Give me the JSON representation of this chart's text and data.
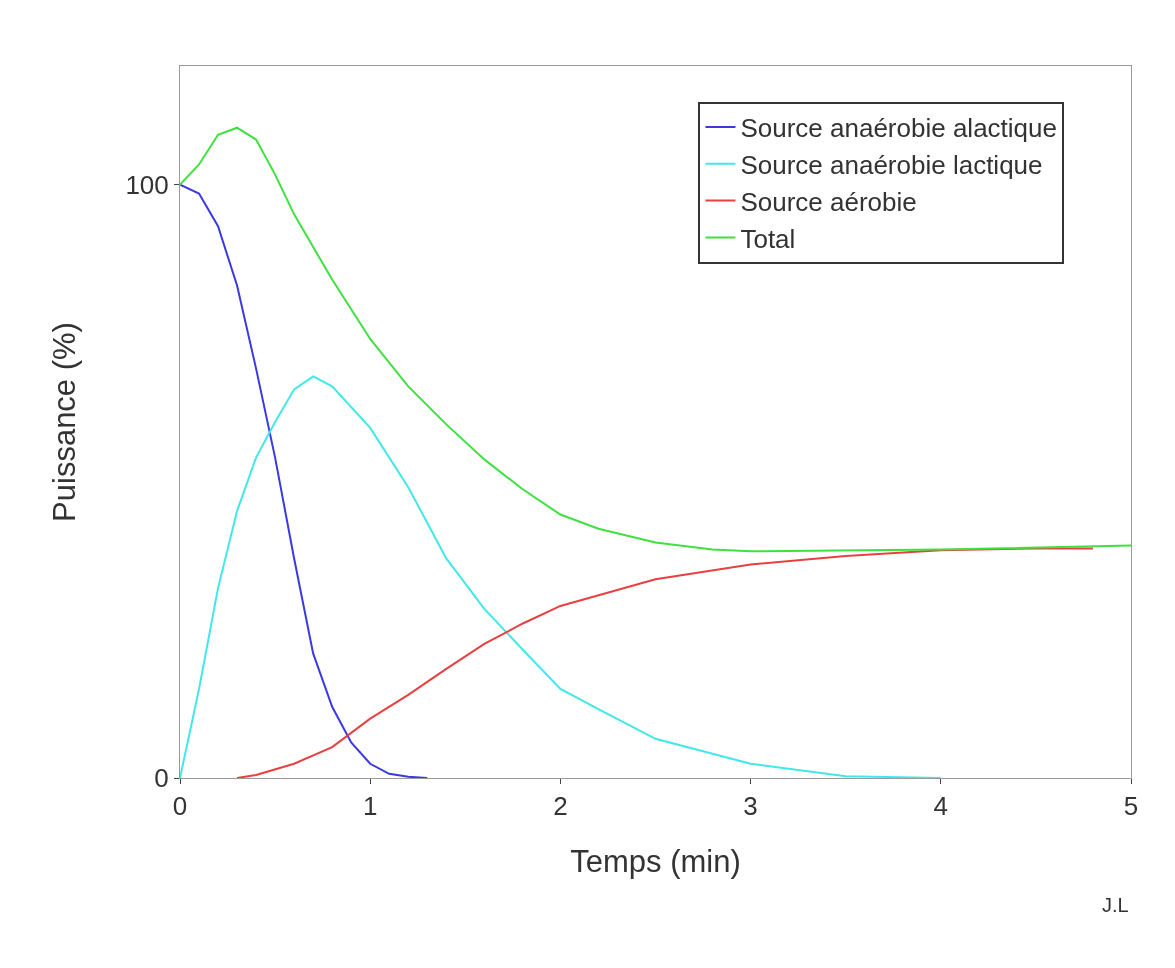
{
  "chart_data": {
    "type": "line",
    "xlabel": "Temps (min)",
    "ylabel": "Puissance (%)",
    "xlim": [
      0,
      5
    ],
    "xticks": [
      0,
      1,
      2,
      3,
      4,
      5
    ],
    "ylim": [
      0,
      120
    ],
    "yticks": [
      0,
      100
    ],
    "legend": "top right",
    "marker": "none",
    "line_style": "solid",
    "annotations": [
      "J.L"
    ],
    "series": [
      {
        "name": "Source anaérobie alactique",
        "color": "#3a3ae0",
        "x": [
          0,
          0.1,
          0.2,
          0.3,
          0.4,
          0.5,
          0.6,
          0.7,
          0.8,
          0.9,
          1.0,
          1.1,
          1.2,
          1.3
        ],
        "values": [
          100,
          98.5,
          93,
          83,
          69,
          54,
          37,
          21,
          12,
          6,
          2.4,
          0.7,
          0.2,
          0
        ]
      },
      {
        "name": "Source anaérobie lactique",
        "color": "#40e8e8",
        "x": [
          0,
          0.1,
          0.2,
          0.3,
          0.4,
          0.5,
          0.6,
          0.7,
          0.8,
          1.0,
          1.2,
          1.4,
          1.6,
          1.8,
          2.0,
          2.2,
          2.5,
          3.0,
          3.5,
          4.0
        ],
        "values": [
          0,
          15,
          32,
          45,
          54,
          60,
          65.5,
          67.7,
          66,
          59,
          49,
          37,
          28.5,
          21.7,
          15,
          11.6,
          6.6,
          2.4,
          0.3,
          0
        ]
      },
      {
        "name": "Source aérobie",
        "color": "#e84040",
        "x": [
          0.3,
          0.4,
          0.6,
          0.8,
          1.0,
          1.2,
          1.4,
          1.6,
          1.8,
          2.0,
          2.5,
          3.0,
          3.5,
          4.0,
          4.5,
          4.8
        ],
        "values": [
          0,
          0.5,
          2.4,
          5.2,
          10,
          14,
          18.4,
          22.6,
          26,
          29,
          33.5,
          36,
          37.4,
          38.4,
          38.7,
          38.7
        ]
      },
      {
        "name": "Total",
        "color": "#40e040",
        "x": [
          0,
          0.1,
          0.2,
          0.3,
          0.4,
          0.5,
          0.6,
          0.8,
          1.0,
          1.2,
          1.4,
          1.6,
          1.8,
          2.0,
          2.2,
          2.5,
          2.8,
          3.0,
          4.0,
          5.0
        ],
        "values": [
          100,
          103.4,
          108.4,
          109.6,
          107.6,
          101.7,
          95,
          84,
          74,
          66,
          59.6,
          53.7,
          48.7,
          44.4,
          42,
          39.7,
          38.5,
          38.2,
          38.5,
          39.2
        ]
      }
    ]
  }
}
